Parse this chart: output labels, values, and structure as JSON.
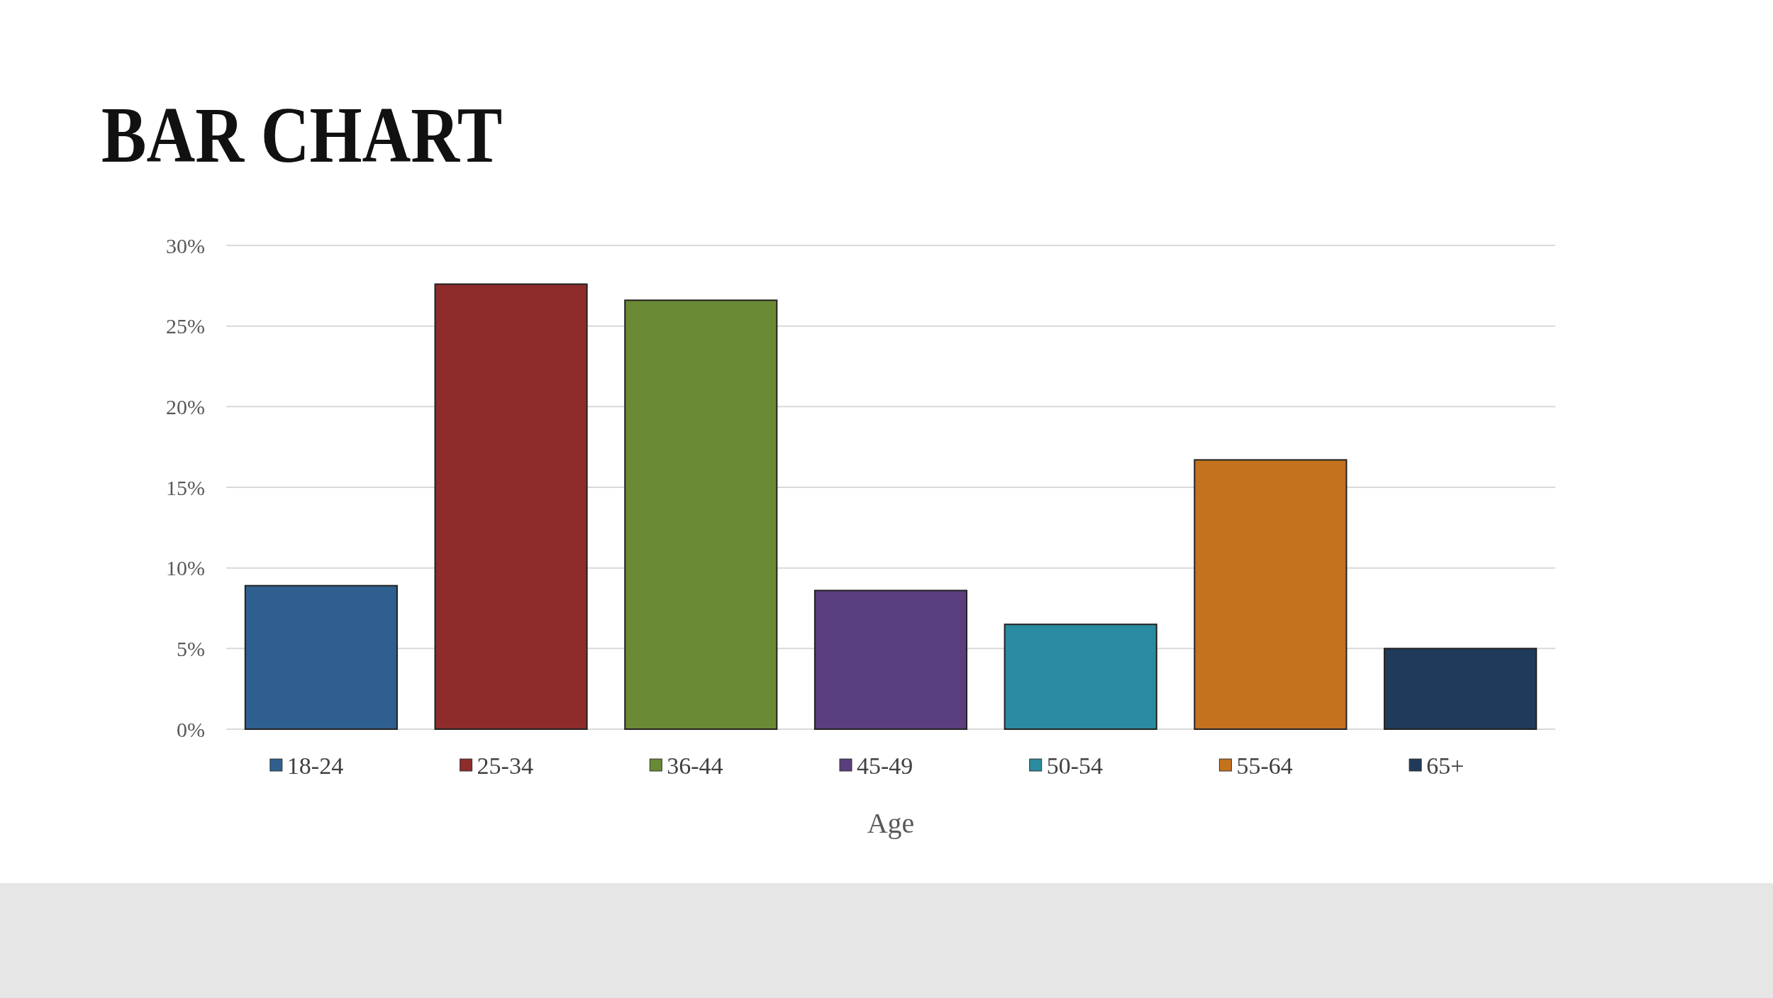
{
  "chart_data": {
    "type": "bar",
    "title": "BAR CHART",
    "xlabel": "Age",
    "categories": [
      "18-24",
      "25-34",
      "36-44",
      "45-49",
      "50-54",
      "55-64",
      "65+"
    ],
    "values": [
      8.9,
      27.6,
      26.6,
      8.6,
      6.5,
      16.7,
      5.0
    ],
    "colors": [
      "#2f5f8f",
      "#8e2c2b",
      "#6a8a35",
      "#5a3f7e",
      "#2b8ba0",
      "#c5721f",
      "#1f3a5b"
    ],
    "ylim": [
      0,
      30
    ],
    "yticks": [
      {
        "value": 0,
        "label": "0%"
      },
      {
        "value": 5,
        "label": "5%"
      },
      {
        "value": 10,
        "label": "10%"
      },
      {
        "value": 15,
        "label": "15%"
      },
      {
        "value": 20,
        "label": "20%"
      },
      {
        "value": 25,
        "label": "25%"
      },
      {
        "value": 30,
        "label": "30%"
      }
    ],
    "grid": "y"
  }
}
